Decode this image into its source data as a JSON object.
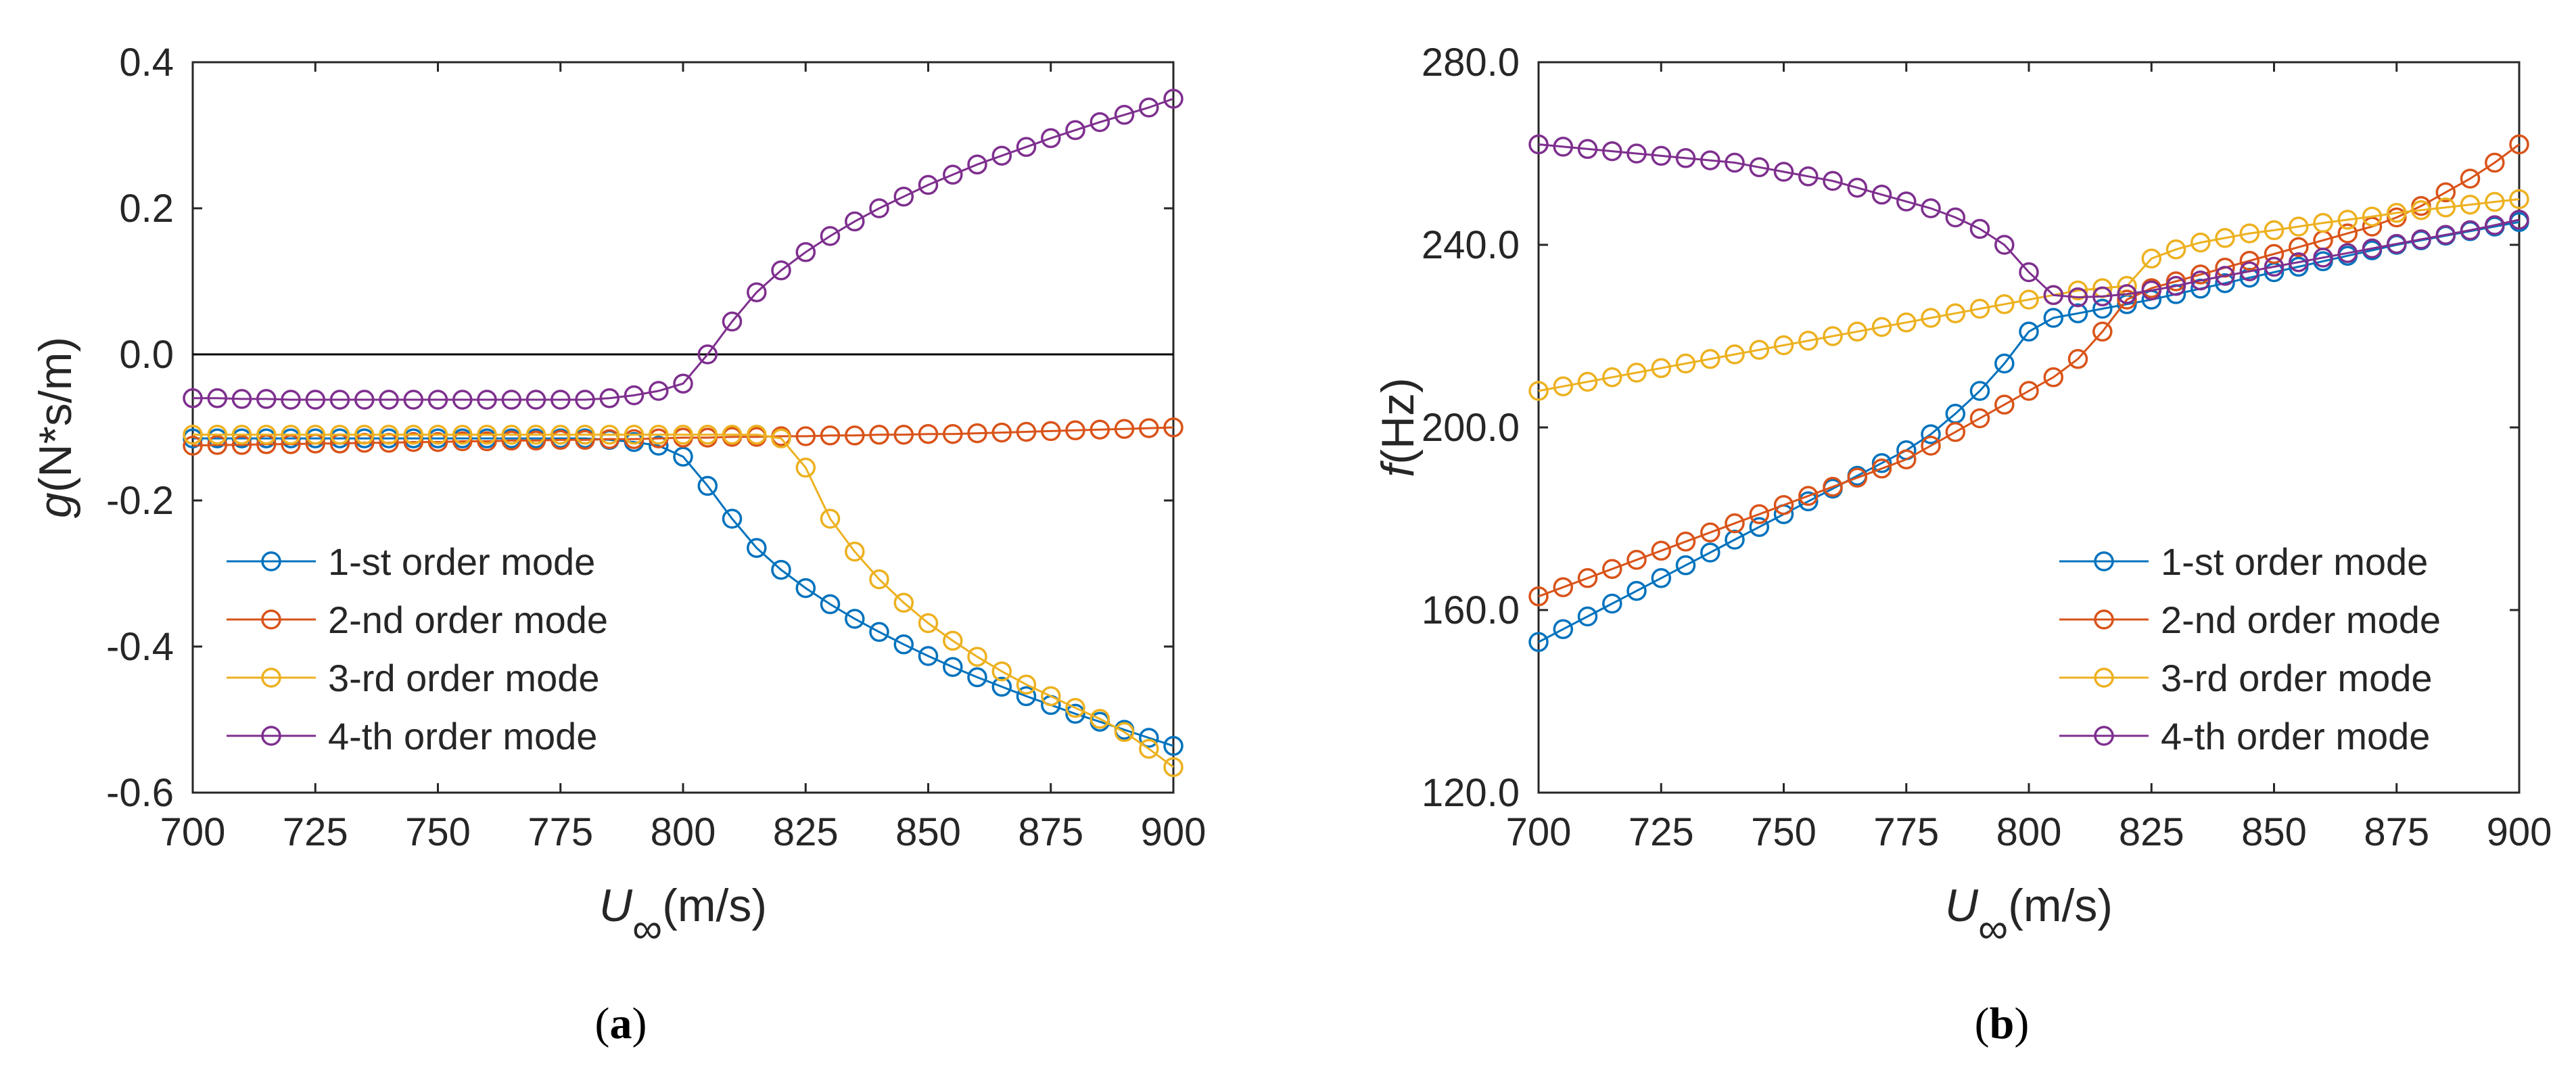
{
  "chart_data": [
    {
      "type": "line",
      "panel_label": "a",
      "xlabel": "U",
      "xlabel_subscript": "∞",
      "xlabel_unit": "(m/s)",
      "ylabel": "g",
      "ylabel_unit": "(N*s/m)",
      "xlim": [
        700,
        900
      ],
      "ylim": [
        -0.6,
        0.4
      ],
      "xticks": [
        "700",
        "725",
        "750",
        "775",
        "800",
        "825",
        "850",
        "875",
        "900"
      ],
      "yticks": [
        "-0.6",
        "-0.4",
        "-0.2",
        "0.0",
        "0.2",
        "0.4"
      ],
      "reference_line_y": 0,
      "legend_position": "bottom-left",
      "x": [
        700,
        705,
        710,
        715,
        720,
        725,
        730,
        735,
        740,
        745,
        750,
        755,
        760,
        765,
        770,
        775,
        780,
        785,
        790,
        795,
        800,
        805,
        810,
        815,
        820,
        825,
        830,
        835,
        840,
        845,
        850,
        855,
        860,
        865,
        870,
        875,
        880,
        885,
        890,
        895,
        900
      ],
      "series": [
        {
          "name": "1-st order mode",
          "color": "#0072BD",
          "values": [
            -0.115,
            -0.115,
            -0.115,
            -0.115,
            -0.115,
            -0.115,
            -0.115,
            -0.115,
            -0.115,
            -0.115,
            -0.115,
            -0.115,
            -0.115,
            -0.115,
            -0.115,
            -0.115,
            -0.115,
            -0.117,
            -0.12,
            -0.125,
            -0.14,
            -0.18,
            -0.225,
            -0.265,
            -0.295,
            -0.32,
            -0.342,
            -0.362,
            -0.38,
            -0.397,
            -0.413,
            -0.428,
            -0.442,
            -0.455,
            -0.468,
            -0.48,
            -0.492,
            -0.503,
            -0.514,
            -0.525,
            -0.536
          ]
        },
        {
          "name": "2-nd order mode",
          "color": "#D95319",
          "values": [
            -0.125,
            -0.124,
            -0.124,
            -0.123,
            -0.123,
            -0.122,
            -0.122,
            -0.121,
            -0.121,
            -0.12,
            -0.12,
            -0.119,
            -0.119,
            -0.118,
            -0.118,
            -0.117,
            -0.117,
            -0.116,
            -0.116,
            -0.115,
            -0.114,
            -0.114,
            -0.113,
            -0.113,
            -0.112,
            -0.112,
            -0.111,
            -0.111,
            -0.11,
            -0.11,
            -0.109,
            -0.109,
            -0.108,
            -0.107,
            -0.106,
            -0.105,
            -0.104,
            -0.103,
            -0.102,
            -0.101,
            -0.1
          ]
        },
        {
          "name": "3-rd order mode",
          "color": "#EDB120",
          "values": [
            -0.11,
            -0.11,
            -0.11,
            -0.11,
            -0.11,
            -0.11,
            -0.11,
            -0.11,
            -0.11,
            -0.11,
            -0.11,
            -0.11,
            -0.11,
            -0.11,
            -0.11,
            -0.11,
            -0.11,
            -0.11,
            -0.11,
            -0.11,
            -0.11,
            -0.11,
            -0.11,
            -0.11,
            -0.115,
            -0.155,
            -0.225,
            -0.27,
            -0.308,
            -0.34,
            -0.368,
            -0.392,
            -0.414,
            -0.434,
            -0.452,
            -0.468,
            -0.484,
            -0.499,
            -0.517,
            -0.54,
            -0.565
          ]
        },
        {
          "name": "4-th order mode",
          "color": "#7E2F8E",
          "values": [
            -0.06,
            -0.06,
            -0.061,
            -0.061,
            -0.062,
            -0.062,
            -0.062,
            -0.062,
            -0.062,
            -0.062,
            -0.062,
            -0.062,
            -0.062,
            -0.062,
            -0.062,
            -0.062,
            -0.062,
            -0.06,
            -0.056,
            -0.05,
            -0.04,
            0.0,
            0.045,
            0.085,
            0.115,
            0.14,
            0.162,
            0.182,
            0.2,
            0.216,
            0.232,
            0.246,
            0.26,
            0.272,
            0.284,
            0.296,
            0.307,
            0.318,
            0.328,
            0.338,
            0.35
          ]
        }
      ]
    },
    {
      "type": "line",
      "panel_label": "b",
      "xlabel": "U",
      "xlabel_subscript": "∞",
      "xlabel_unit": "(m/s)",
      "ylabel": "f",
      "ylabel_unit": "(Hz)",
      "xlim": [
        700,
        900
      ],
      "ylim": [
        120,
        280
      ],
      "xticks": [
        "700",
        "725",
        "750",
        "775",
        "800",
        "825",
        "850",
        "875",
        "900"
      ],
      "yticks": [
        "120.0",
        "160.0",
        "200.0",
        "240.0",
        "280.0"
      ],
      "legend_position": "bottom-right",
      "x": [
        700,
        705,
        710,
        715,
        720,
        725,
        730,
        735,
        740,
        745,
        750,
        755,
        760,
        765,
        770,
        775,
        780,
        785,
        790,
        795,
        800,
        805,
        810,
        815,
        820,
        825,
        830,
        835,
        840,
        845,
        850,
        855,
        860,
        865,
        870,
        875,
        880,
        885,
        890,
        895,
        900
      ],
      "series": [
        {
          "name": "1-st order mode",
          "color": "#0072BD",
          "values": [
            153,
            155.8,
            158.6,
            161.4,
            164.2,
            167,
            169.8,
            172.6,
            175.4,
            178.2,
            181,
            183.8,
            186.6,
            189.4,
            192.2,
            195,
            198.5,
            203,
            208,
            214,
            221,
            224,
            225,
            226,
            227,
            228,
            229.2,
            230.4,
            231.6,
            232.8,
            234,
            235.2,
            236.4,
            237.6,
            238.8,
            240,
            241,
            242,
            243,
            244,
            245
          ]
        },
        {
          "name": "2-nd order mode",
          "color": "#D95319",
          "values": [
            163,
            165,
            167,
            169,
            171,
            173,
            175,
            177,
            179,
            181,
            183,
            185,
            187,
            189,
            191,
            193,
            196,
            199,
            202,
            205,
            208,
            211,
            215,
            221,
            228,
            230.5,
            232,
            233.5,
            235,
            236.5,
            238,
            239.5,
            241,
            242.5,
            244,
            246,
            248.5,
            251.5,
            254.5,
            258,
            262
          ]
        },
        {
          "name": "3-rd order mode",
          "color": "#EDB120",
          "values": [
            208,
            209,
            210,
            211,
            212,
            213,
            214,
            215,
            216,
            217,
            218,
            219,
            220,
            221,
            222,
            223,
            224,
            225,
            226,
            227,
            228,
            229,
            230,
            230.5,
            231,
            237,
            239,
            240.5,
            241.5,
            242.5,
            243.2,
            244,
            244.8,
            245.5,
            246.2,
            247,
            247.6,
            248.2,
            248.8,
            249.4,
            250
          ]
        },
        {
          "name": "4-th order mode",
          "color": "#7E2F8E",
          "values": [
            262,
            261.5,
            261,
            260.5,
            260,
            259.5,
            259,
            258.5,
            258,
            257,
            256,
            255,
            254,
            252.5,
            251,
            249.5,
            248,
            246,
            243.5,
            240,
            234,
            229,
            228.5,
            228.7,
            229.2,
            230,
            231,
            232.2,
            233.2,
            234.2,
            235.2,
            236.2,
            237.2,
            238.2,
            239.2,
            240.2,
            241.2,
            242.2,
            243.2,
            244.3,
            245.5
          ]
        }
      ]
    }
  ]
}
